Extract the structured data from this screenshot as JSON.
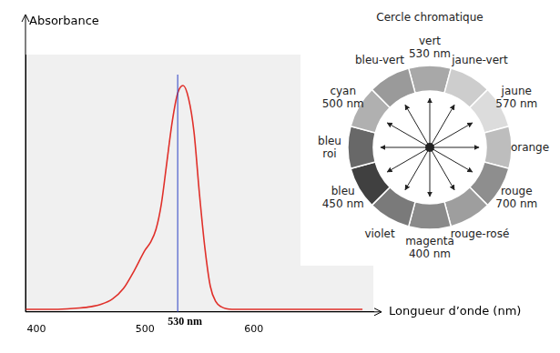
{
  "chart_data": {
    "type": "line",
    "y_label": "Absorbance",
    "x_label": "Longueur d’onde (nm)",
    "x": [
      390,
      400,
      420,
      440,
      450,
      460,
      470,
      480,
      490,
      500,
      505,
      510,
      515,
      520,
      525,
      530,
      535,
      540,
      545,
      550,
      555,
      560,
      565,
      570,
      580,
      600,
      650,
      700
    ],
    "values": [
      0.01,
      0.01,
      0.01,
      0.015,
      0.02,
      0.03,
      0.05,
      0.09,
      0.16,
      0.24,
      0.27,
      0.32,
      0.42,
      0.58,
      0.74,
      0.85,
      0.88,
      0.83,
      0.7,
      0.46,
      0.25,
      0.1,
      0.04,
      0.02,
      0.01,
      0.01,
      0.01,
      0.01
    ],
    "color": "#e0302a",
    "xlim": [
      390,
      710
    ],
    "xticks": [
      400,
      500,
      600
    ],
    "ylim": [
      0,
      1
    ],
    "grid": false,
    "tick_labels": "x",
    "annotations": [
      {
        "x": 530,
        "label": "530 nm",
        "color": "#2a3fc4"
      }
    ]
  },
  "color_wheel": {
    "title": "Cercle chromatique",
    "segments": [
      {
        "name": "vert",
        "wavelength": "530 nm"
      },
      {
        "name": "jaune-vert"
      },
      {
        "name": "jaune",
        "wavelength": "570 nm"
      },
      {
        "name": "orange"
      },
      {
        "name": "rouge",
        "wavelength": "700 nm"
      },
      {
        "name": "rouge-rosé"
      },
      {
        "name": "magenta",
        "wavelength": "400 nm"
      },
      {
        "name": "violet"
      },
      {
        "name": "bleu",
        "wavelength": "450 nm"
      },
      {
        "name": "bleu roi"
      },
      {
        "name": "cyan",
        "wavelength": "500 nm"
      },
      {
        "name": "bleu-vert"
      }
    ]
  }
}
